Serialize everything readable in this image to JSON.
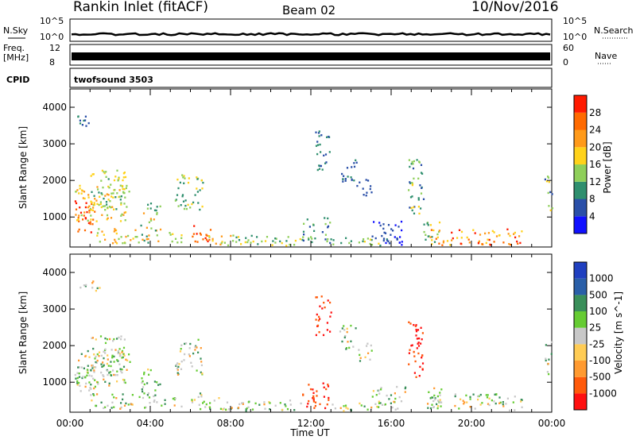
{
  "header": {
    "site": "Rankin Inlet (fitACF)",
    "beam": "Beam 02",
    "date": "10/Nov/2016"
  },
  "strips": {
    "nsky_label": "N.Sky",
    "nsearch_label": "N.Search",
    "nsky_ticks": [
      "10^5",
      "10^0"
    ],
    "nsky_right_ticks": [
      "10^5",
      "10^0"
    ],
    "freq_label": "Freq.",
    "freq_unit": "[MHz]",
    "freq_ticks": [
      "12",
      "8"
    ],
    "nave_label": "Nave",
    "nave_ticks": [
      "60",
      "0"
    ],
    "cpid_label": "CPID",
    "cpid_value": "twofsound 3503"
  },
  "colors": {
    "power_scale": [
      "#1010ff",
      "#2a4fa8",
      "#2f8f6e",
      "#8fcf5a",
      "#ffd21a",
      "#ff9a1a",
      "#ff6a00",
      "#ff1a00"
    ],
    "velocity_scale": [
      "#ff1010",
      "#ff5a0a",
      "#ff9a30",
      "#ffcc55",
      "#c8c8c8",
      "#66cc33",
      "#3a8f5a",
      "#2a5fa8",
      "#2040c0"
    ]
  },
  "chart_data": [
    {
      "type": "heatmap",
      "name": "power",
      "ylabel": "Slant Range [km]",
      "yticks": [
        "1000",
        "2000",
        "3000",
        "4000"
      ],
      "xticks": [
        "00:00",
        "04:00",
        "08:00",
        "12:00",
        "16:00",
        "20:00",
        "00:00"
      ],
      "colorbar_label": "Power [dB]",
      "colorbar_ticks": [
        "4",
        "8",
        "12",
        "16",
        "20",
        "24",
        "28"
      ],
      "ylim": [
        180,
        4500
      ],
      "xlim_hours": [
        0,
        24
      ]
    },
    {
      "type": "heatmap",
      "name": "velocity",
      "ylabel": "Slant Range [km]",
      "yticks": [
        "1000",
        "2000",
        "3000",
        "4000"
      ],
      "xticks": [
        "00:00",
        "04:00",
        "08:00",
        "12:00",
        "16:00",
        "20:00",
        "00:00"
      ],
      "xlabel": "Time UT",
      "colorbar_label": "Velocity [m s^-1]",
      "colorbar_ticks": [
        "1000",
        "500",
        "100",
        "25",
        "-25",
        "-100",
        "-500",
        "-1000"
      ],
      "ylim": [
        180,
        4500
      ],
      "xlim_hours": [
        0,
        24
      ]
    }
  ]
}
